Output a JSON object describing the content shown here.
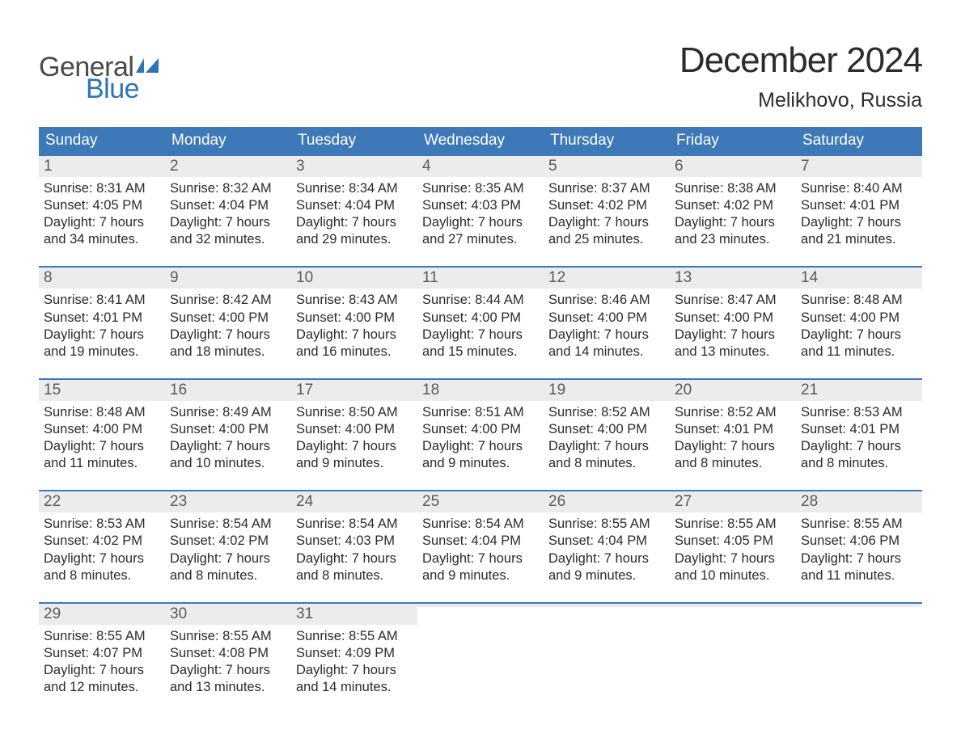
{
  "logo": {
    "word1": "General",
    "word2": "Blue"
  },
  "header": {
    "month_title": "December 2024",
    "location": "Melikhovo, Russia"
  },
  "theme": {
    "accent": "#3d79b8",
    "header_bg": "#3d79b8",
    "header_text": "#ffffff",
    "daynum_bg": "#ececec",
    "daynum_text": "#5a5a5a",
    "body_text": "#2b2b2b",
    "logo_gray": "#4a4a4a",
    "logo_blue": "#2c74b8",
    "background": "#ffffff",
    "title_fontsize": 44,
    "location_fontsize": 25,
    "header_fontsize": 19,
    "body_fontsize": 16.5
  },
  "weekdays": [
    "Sunday",
    "Monday",
    "Tuesday",
    "Wednesday",
    "Thursday",
    "Friday",
    "Saturday"
  ],
  "weeks": [
    [
      {
        "n": "1",
        "sunrise": "Sunrise: 8:31 AM",
        "sunset": "Sunset: 4:05 PM",
        "d1": "Daylight: 7 hours",
        "d2": "and 34 minutes."
      },
      {
        "n": "2",
        "sunrise": "Sunrise: 8:32 AM",
        "sunset": "Sunset: 4:04 PM",
        "d1": "Daylight: 7 hours",
        "d2": "and 32 minutes."
      },
      {
        "n": "3",
        "sunrise": "Sunrise: 8:34 AM",
        "sunset": "Sunset: 4:04 PM",
        "d1": "Daylight: 7 hours",
        "d2": "and 29 minutes."
      },
      {
        "n": "4",
        "sunrise": "Sunrise: 8:35 AM",
        "sunset": "Sunset: 4:03 PM",
        "d1": "Daylight: 7 hours",
        "d2": "and 27 minutes."
      },
      {
        "n": "5",
        "sunrise": "Sunrise: 8:37 AM",
        "sunset": "Sunset: 4:02 PM",
        "d1": "Daylight: 7 hours",
        "d2": "and 25 minutes."
      },
      {
        "n": "6",
        "sunrise": "Sunrise: 8:38 AM",
        "sunset": "Sunset: 4:02 PM",
        "d1": "Daylight: 7 hours",
        "d2": "and 23 minutes."
      },
      {
        "n": "7",
        "sunrise": "Sunrise: 8:40 AM",
        "sunset": "Sunset: 4:01 PM",
        "d1": "Daylight: 7 hours",
        "d2": "and 21 minutes."
      }
    ],
    [
      {
        "n": "8",
        "sunrise": "Sunrise: 8:41 AM",
        "sunset": "Sunset: 4:01 PM",
        "d1": "Daylight: 7 hours",
        "d2": "and 19 minutes."
      },
      {
        "n": "9",
        "sunrise": "Sunrise: 8:42 AM",
        "sunset": "Sunset: 4:00 PM",
        "d1": "Daylight: 7 hours",
        "d2": "and 18 minutes."
      },
      {
        "n": "10",
        "sunrise": "Sunrise: 8:43 AM",
        "sunset": "Sunset: 4:00 PM",
        "d1": "Daylight: 7 hours",
        "d2": "and 16 minutes."
      },
      {
        "n": "11",
        "sunrise": "Sunrise: 8:44 AM",
        "sunset": "Sunset: 4:00 PM",
        "d1": "Daylight: 7 hours",
        "d2": "and 15 minutes."
      },
      {
        "n": "12",
        "sunrise": "Sunrise: 8:46 AM",
        "sunset": "Sunset: 4:00 PM",
        "d1": "Daylight: 7 hours",
        "d2": "and 14 minutes."
      },
      {
        "n": "13",
        "sunrise": "Sunrise: 8:47 AM",
        "sunset": "Sunset: 4:00 PM",
        "d1": "Daylight: 7 hours",
        "d2": "and 13 minutes."
      },
      {
        "n": "14",
        "sunrise": "Sunrise: 8:48 AM",
        "sunset": "Sunset: 4:00 PM",
        "d1": "Daylight: 7 hours",
        "d2": "and 11 minutes."
      }
    ],
    [
      {
        "n": "15",
        "sunrise": "Sunrise: 8:48 AM",
        "sunset": "Sunset: 4:00 PM",
        "d1": "Daylight: 7 hours",
        "d2": "and 11 minutes."
      },
      {
        "n": "16",
        "sunrise": "Sunrise: 8:49 AM",
        "sunset": "Sunset: 4:00 PM",
        "d1": "Daylight: 7 hours",
        "d2": "and 10 minutes."
      },
      {
        "n": "17",
        "sunrise": "Sunrise: 8:50 AM",
        "sunset": "Sunset: 4:00 PM",
        "d1": "Daylight: 7 hours",
        "d2": "and 9 minutes."
      },
      {
        "n": "18",
        "sunrise": "Sunrise: 8:51 AM",
        "sunset": "Sunset: 4:00 PM",
        "d1": "Daylight: 7 hours",
        "d2": "and 9 minutes."
      },
      {
        "n": "19",
        "sunrise": "Sunrise: 8:52 AM",
        "sunset": "Sunset: 4:00 PM",
        "d1": "Daylight: 7 hours",
        "d2": "and 8 minutes."
      },
      {
        "n": "20",
        "sunrise": "Sunrise: 8:52 AM",
        "sunset": "Sunset: 4:01 PM",
        "d1": "Daylight: 7 hours",
        "d2": "and 8 minutes."
      },
      {
        "n": "21",
        "sunrise": "Sunrise: 8:53 AM",
        "sunset": "Sunset: 4:01 PM",
        "d1": "Daylight: 7 hours",
        "d2": "and 8 minutes."
      }
    ],
    [
      {
        "n": "22",
        "sunrise": "Sunrise: 8:53 AM",
        "sunset": "Sunset: 4:02 PM",
        "d1": "Daylight: 7 hours",
        "d2": "and 8 minutes."
      },
      {
        "n": "23",
        "sunrise": "Sunrise: 8:54 AM",
        "sunset": "Sunset: 4:02 PM",
        "d1": "Daylight: 7 hours",
        "d2": "and 8 minutes."
      },
      {
        "n": "24",
        "sunrise": "Sunrise: 8:54 AM",
        "sunset": "Sunset: 4:03 PM",
        "d1": "Daylight: 7 hours",
        "d2": "and 8 minutes."
      },
      {
        "n": "25",
        "sunrise": "Sunrise: 8:54 AM",
        "sunset": "Sunset: 4:04 PM",
        "d1": "Daylight: 7 hours",
        "d2": "and 9 minutes."
      },
      {
        "n": "26",
        "sunrise": "Sunrise: 8:55 AM",
        "sunset": "Sunset: 4:04 PM",
        "d1": "Daylight: 7 hours",
        "d2": "and 9 minutes."
      },
      {
        "n": "27",
        "sunrise": "Sunrise: 8:55 AM",
        "sunset": "Sunset: 4:05 PM",
        "d1": "Daylight: 7 hours",
        "d2": "and 10 minutes."
      },
      {
        "n": "28",
        "sunrise": "Sunrise: 8:55 AM",
        "sunset": "Sunset: 4:06 PM",
        "d1": "Daylight: 7 hours",
        "d2": "and 11 minutes."
      }
    ],
    [
      {
        "n": "29",
        "sunrise": "Sunrise: 8:55 AM",
        "sunset": "Sunset: 4:07 PM",
        "d1": "Daylight: 7 hours",
        "d2": "and 12 minutes."
      },
      {
        "n": "30",
        "sunrise": "Sunrise: 8:55 AM",
        "sunset": "Sunset: 4:08 PM",
        "d1": "Daylight: 7 hours",
        "d2": "and 13 minutes."
      },
      {
        "n": "31",
        "sunrise": "Sunrise: 8:55 AM",
        "sunset": "Sunset: 4:09 PM",
        "d1": "Daylight: 7 hours",
        "d2": "and 14 minutes."
      },
      {
        "empty": true
      },
      {
        "empty": true
      },
      {
        "empty": true
      },
      {
        "empty": true
      }
    ]
  ]
}
